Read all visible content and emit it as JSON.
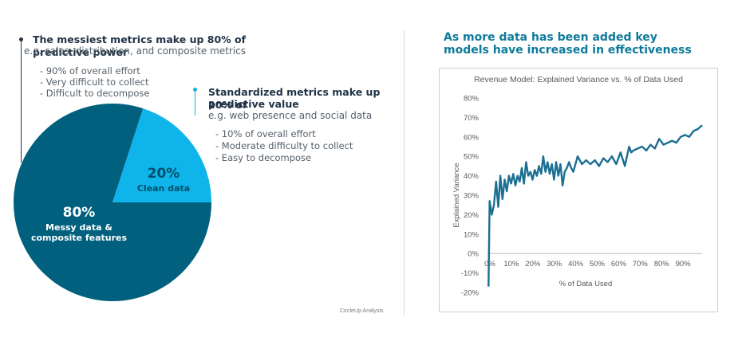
{
  "left": {
    "block1": {
      "heading": "The messiest metrics make up 80% of predictive power",
      "subheading": "e.g. sales, distribution, and composite metrics",
      "items": [
        "- 90% of overall effort",
        "- Very difficult to collect",
        "- Difficult to decompose"
      ]
    },
    "block2": {
      "heading_line1": "Standardized metrics make up 20% of",
      "heading_line2": "predictive value",
      "subheading": "e.g. web presence and social data",
      "items": [
        "- 10% of overall effort",
        "- Moderate difficulty to collect",
        "- Easy to decompose"
      ]
    },
    "pie": {
      "slices": [
        {
          "name": "Messy data & composite features",
          "value": 80,
          "pct_label": "80%",
          "label_line1": "Messy data &",
          "label_line2": "composite features",
          "color": "#00607e"
        },
        {
          "name": "Clean data",
          "value": 20,
          "pct_label": "20%",
          "label_line1": "Clean data",
          "color": "#0fb4ea"
        }
      ]
    },
    "source": "CircleUp Analysis"
  },
  "right": {
    "title_line1": "As more data has been added key",
    "title_line2": "models have increased in effectiveness"
  },
  "colors": {
    "accent": "#0e7a9b",
    "pie_dark": "#00607e",
    "pie_light": "#0fb4ea",
    "line": "#1a6f92",
    "bullet_dark": "#1f3345",
    "bullet_light": "#0fb4ea"
  },
  "chart_data": {
    "type": "line",
    "title": "Revenue Model: Explained Variance vs. % of Data Used",
    "xlabel": "% of Data Used",
    "ylabel": "Explained Variance",
    "xlim": [
      0,
      100
    ],
    "ylim": [
      -20,
      85
    ],
    "x_ticks": [
      "0%",
      "10%",
      "20%",
      "30%",
      "40%",
      "50%",
      "60%",
      "70%",
      "80%",
      "90%"
    ],
    "y_ticks": [
      "-20%",
      "-10%",
      "0%",
      "10%",
      "20%",
      "30%",
      "40%",
      "50%",
      "60%",
      "70%",
      "80%"
    ],
    "x_tick_values": [
      0,
      10,
      20,
      30,
      40,
      50,
      60,
      70,
      80,
      90
    ],
    "y_tick_values": [
      -20,
      -10,
      0,
      10,
      20,
      30,
      40,
      50,
      60,
      70,
      80
    ],
    "grid": false,
    "series": [
      {
        "x": [
          0.5,
          1,
          2,
          3,
          4,
          5,
          6,
          7,
          8,
          9,
          10,
          11,
          12,
          13,
          14,
          15,
          16,
          17,
          18,
          19,
          20,
          21,
          22,
          23,
          24,
          25,
          26,
          27,
          28,
          29,
          30,
          31,
          32,
          33,
          34,
          35,
          36,
          37,
          38,
          39,
          40,
          42,
          44,
          46,
          48,
          50,
          52,
          54,
          56,
          58,
          60,
          62,
          64,
          66,
          67,
          68,
          70,
          72,
          74,
          76,
          78,
          80,
          82,
          84,
          86,
          88,
          90,
          92,
          94,
          96,
          98,
          100
        ],
        "y": [
          -17,
          27,
          20,
          25,
          37,
          24,
          40,
          28,
          38,
          32,
          40,
          36,
          41,
          35,
          40,
          37,
          44,
          36,
          47,
          40,
          42,
          38,
          43,
          40,
          45,
          41,
          50,
          42,
          47,
          41,
          46,
          38,
          47,
          40,
          46,
          35,
          42,
          44,
          47,
          44,
          42,
          50,
          46,
          48,
          46,
          48,
          45,
          49,
          47,
          50,
          46,
          52,
          45,
          55,
          52,
          53,
          54,
          55,
          53,
          56,
          54,
          59,
          56,
          57,
          58,
          57,
          60,
          61,
          60,
          63,
          64,
          66
        ]
      }
    ]
  }
}
